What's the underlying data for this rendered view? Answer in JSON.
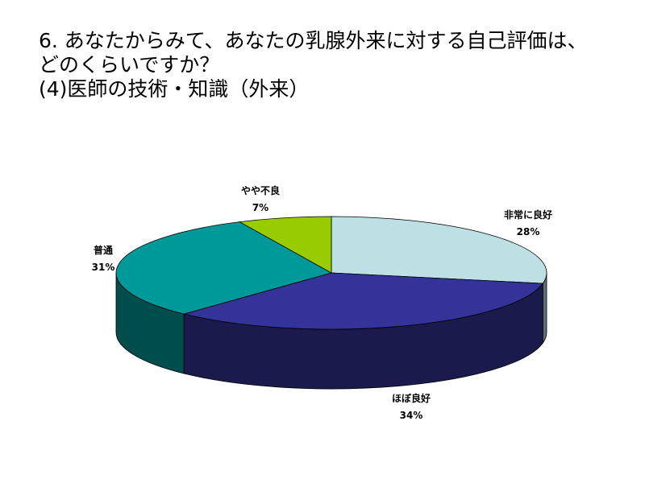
{
  "title": {
    "line1": "6. あなたからみて、あなたの乳腺外来に対する自己評価は、",
    "line2": "どのくらいですか？",
    "line3": "(4)医師の技術・知識（外来）"
  },
  "chart_data": {
    "type": "pie",
    "three_d": true,
    "title": "6. あなたからみて、あなたの乳腺外来に対する自己評価は、どのくらいですか？ (4)医師の技術・知識（外来）",
    "legend": "none",
    "slices": [
      {
        "label": "非常に良好",
        "value": 28,
        "display": "28%",
        "color": "#bde0e4"
      },
      {
        "label": "ほぼ良好",
        "value": 34,
        "display": "34%",
        "color": "#333399"
      },
      {
        "label": "普通",
        "value": 31,
        "display": "31%",
        "color": "#009999"
      },
      {
        "label": "やや不良",
        "value": 7,
        "display": "7%",
        "color": "#99cc00"
      }
    ]
  }
}
